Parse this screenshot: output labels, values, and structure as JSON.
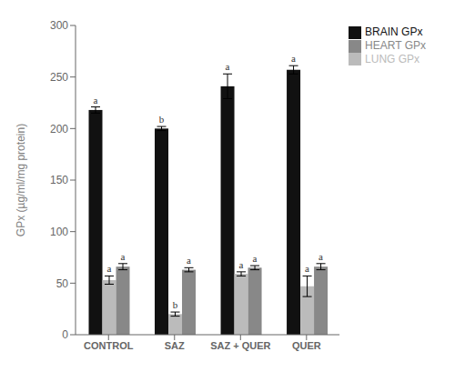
{
  "chart_data": {
    "type": "bar",
    "categories": [
      "CONTROL",
      "SAZ",
      "SAZ + QUER",
      "QUER"
    ],
    "series": [
      {
        "name": "BRAIN GPx",
        "color": "#111111",
        "values": [
          218,
          200,
          241,
          257
        ],
        "errors": [
          3,
          2,
          12,
          4
        ],
        "annotations": [
          "a",
          "b",
          "a",
          "a"
        ]
      },
      {
        "name": "LUNG GPx",
        "color": "#bbbbbb",
        "values": [
          53,
          20,
          59,
          47
        ],
        "errors": [
          4,
          2,
          2,
          10
        ],
        "annotations": [
          "a",
          "b",
          "a",
          "a"
        ]
      },
      {
        "name": "HEART GPx",
        "color": "#888888",
        "values": [
          66,
          63,
          65,
          66
        ],
        "errors": [
          3,
          2,
          2,
          3
        ],
        "annotations": [
          "a",
          "a",
          "a",
          "a"
        ]
      }
    ],
    "ylabel": "GPx (µg/ml/mg protein)",
    "ylim": [
      0,
      300
    ],
    "yticks": [
      0,
      50,
      100,
      150,
      200,
      250,
      300
    ],
    "grid": false,
    "legend": "upper right"
  }
}
